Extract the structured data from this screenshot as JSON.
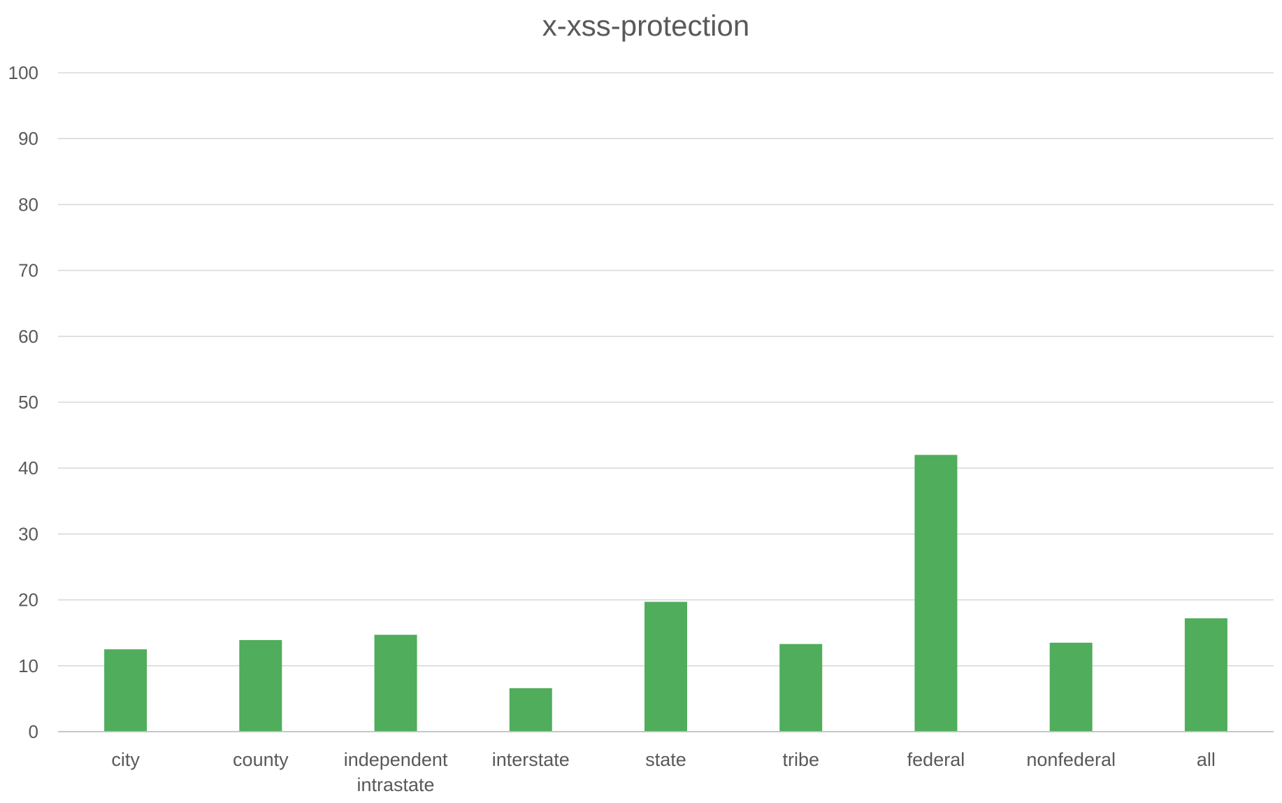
{
  "chart_data": {
    "type": "bar",
    "title": "x-xss-protection",
    "xlabel": "",
    "ylabel": "",
    "ylim": [
      0,
      100
    ],
    "yticks": [
      0,
      10,
      20,
      30,
      40,
      50,
      60,
      70,
      80,
      90,
      100
    ],
    "grid": true,
    "legend": "none",
    "bar_color": "#4fad5b",
    "categories": [
      [
        "city"
      ],
      [
        "county"
      ],
      [
        "independent",
        "intrastate"
      ],
      [
        "interstate"
      ],
      [
        "state"
      ],
      [
        "tribe"
      ],
      [
        "federal"
      ],
      [
        "nonfederal"
      ],
      [
        "all"
      ]
    ],
    "values": [
      12.5,
      13.9,
      14.7,
      6.6,
      19.7,
      13.3,
      42.0,
      13.5,
      17.2
    ]
  }
}
